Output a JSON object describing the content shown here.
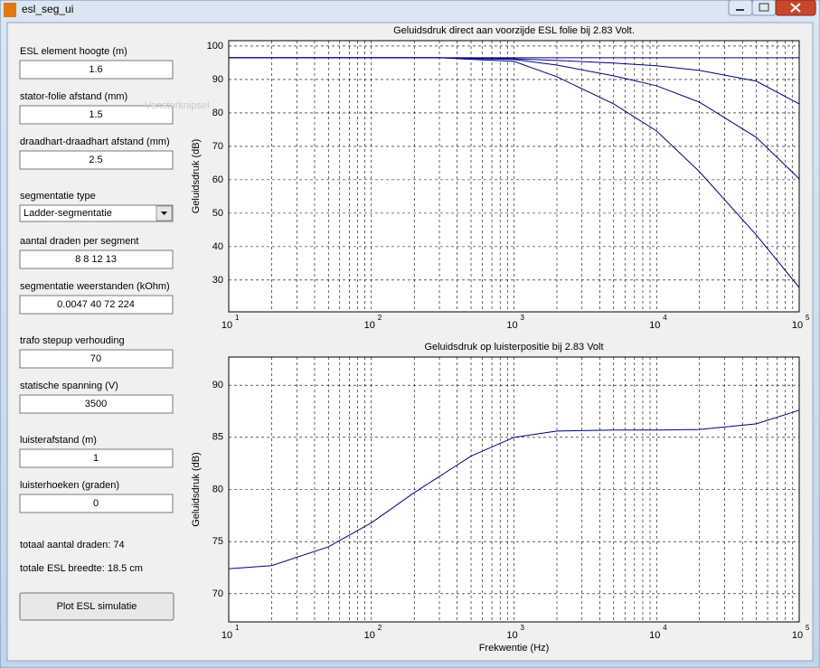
{
  "window": {
    "title": "esl_seg_ui"
  },
  "controls": [
    {
      "label": "ESL element hoogte (m)",
      "value": "1.6"
    },
    {
      "label": "stator-folie afstand (mm)",
      "value": "1.5"
    },
    {
      "label": "draadhart-draadhart afstand (mm)",
      "value": "2.5"
    },
    {
      "label": "segmentatie type",
      "value": "Ladder-segmentatie",
      "type": "popup"
    },
    {
      "label": "aantal draden per segment",
      "value": "8 8 12 13"
    },
    {
      "label": "segmentatie weerstanden (kOhm)",
      "value": "0.0047 40 72 224"
    },
    {
      "label": "trafo stepup verhouding",
      "value": "70"
    },
    {
      "label": "statische spanning (V)",
      "value": "3500"
    },
    {
      "label": "luisterafstand (m)",
      "value": "1"
    },
    {
      "label": "luisterhoeken (graden)",
      "value": "0"
    }
  ],
  "info": [
    "totaal aantal draden: 74",
    "totale ESL breedte: 18.5 cm"
  ],
  "button": "Plot ESL simulatie",
  "overlay_text": "Vensterknipsel",
  "chart_data": [
    {
      "type": "line",
      "title": "Geluidsdruk direct aan voorzijde ESL folie bij 2.83 Volt.",
      "y_label": "Geluidsdruk (dB)",
      "x_scale": "log",
      "grid": true,
      "minor_grid": true,
      "x": [
        10,
        100,
        300,
        1000,
        2000,
        5000,
        10000,
        20000,
        50000,
        100000
      ],
      "series": [
        {
          "color": "#00007f",
          "values": [
            96.5,
            96.5,
            96.5,
            96.5,
            96.5,
            96.5,
            96.5,
            96.5,
            96.5,
            96.5
          ]
        },
        {
          "color": "#00007f",
          "values": [
            96.5,
            96.5,
            96.5,
            95.4,
            90.8,
            82.7,
            74.6,
            62.4,
            43.5,
            27.8
          ]
        },
        {
          "color": "#00007f",
          "values": [
            96.5,
            96.5,
            96.5,
            96,
            94.3,
            91.1,
            88.1,
            83.2,
            72.7,
            60.3
          ]
        },
        {
          "color": "#00007f",
          "values": [
            96.5,
            96.5,
            96.5,
            96.2,
            95.7,
            94.9,
            94.1,
            92.7,
            89.5,
            82.7
          ]
        }
      ],
      "xlim": [
        10,
        100000
      ],
      "ylim": [
        20.5,
        101.6
      ],
      "xticks": [
        {
          "value": 10,
          "label": "10",
          "sup": "1"
        },
        {
          "value": 100,
          "label": "10",
          "sup": "2"
        },
        {
          "value": 1000,
          "label": "10",
          "sup": "3"
        },
        {
          "value": 10000,
          "label": "10",
          "sup": "4"
        },
        {
          "value": 100000,
          "label": "10",
          "sup": "5"
        }
      ],
      "yticks": [
        30,
        40,
        50,
        60,
        70,
        80,
        90,
        100
      ]
    },
    {
      "type": "line",
      "title": "Geluidsdruk op luisterpositie bij 2.83 Volt",
      "x_label": "Frekwentie (Hz)",
      "y_label": "Geluidsdruk (dB)",
      "x_scale": "log",
      "grid": true,
      "minor_grid": true,
      "x": [
        10,
        20,
        50,
        100,
        200,
        500,
        1000,
        2000,
        5000,
        10000,
        20000,
        50000,
        100000
      ],
      "series": [
        {
          "color": "#00007f",
          "values": [
            72.4,
            72.7,
            74.5,
            76.8,
            79.7,
            83.2,
            85,
            85.6,
            85.7,
            85.7,
            85.75,
            86.3,
            87.6
          ]
        }
      ],
      "xlim": [
        10,
        100000
      ],
      "ylim": [
        67.3,
        92.7
      ],
      "xticks": [
        {
          "value": 10,
          "label": "10",
          "sup": "1"
        },
        {
          "value": 100,
          "label": "10",
          "sup": "2"
        },
        {
          "value": 1000,
          "label": "10",
          "sup": "3"
        },
        {
          "value": 10000,
          "label": "10",
          "sup": "4"
        },
        {
          "value": 100000,
          "label": "10",
          "sup": "5"
        }
      ],
      "yticks": [
        70,
        75,
        80,
        85,
        90
      ]
    }
  ]
}
